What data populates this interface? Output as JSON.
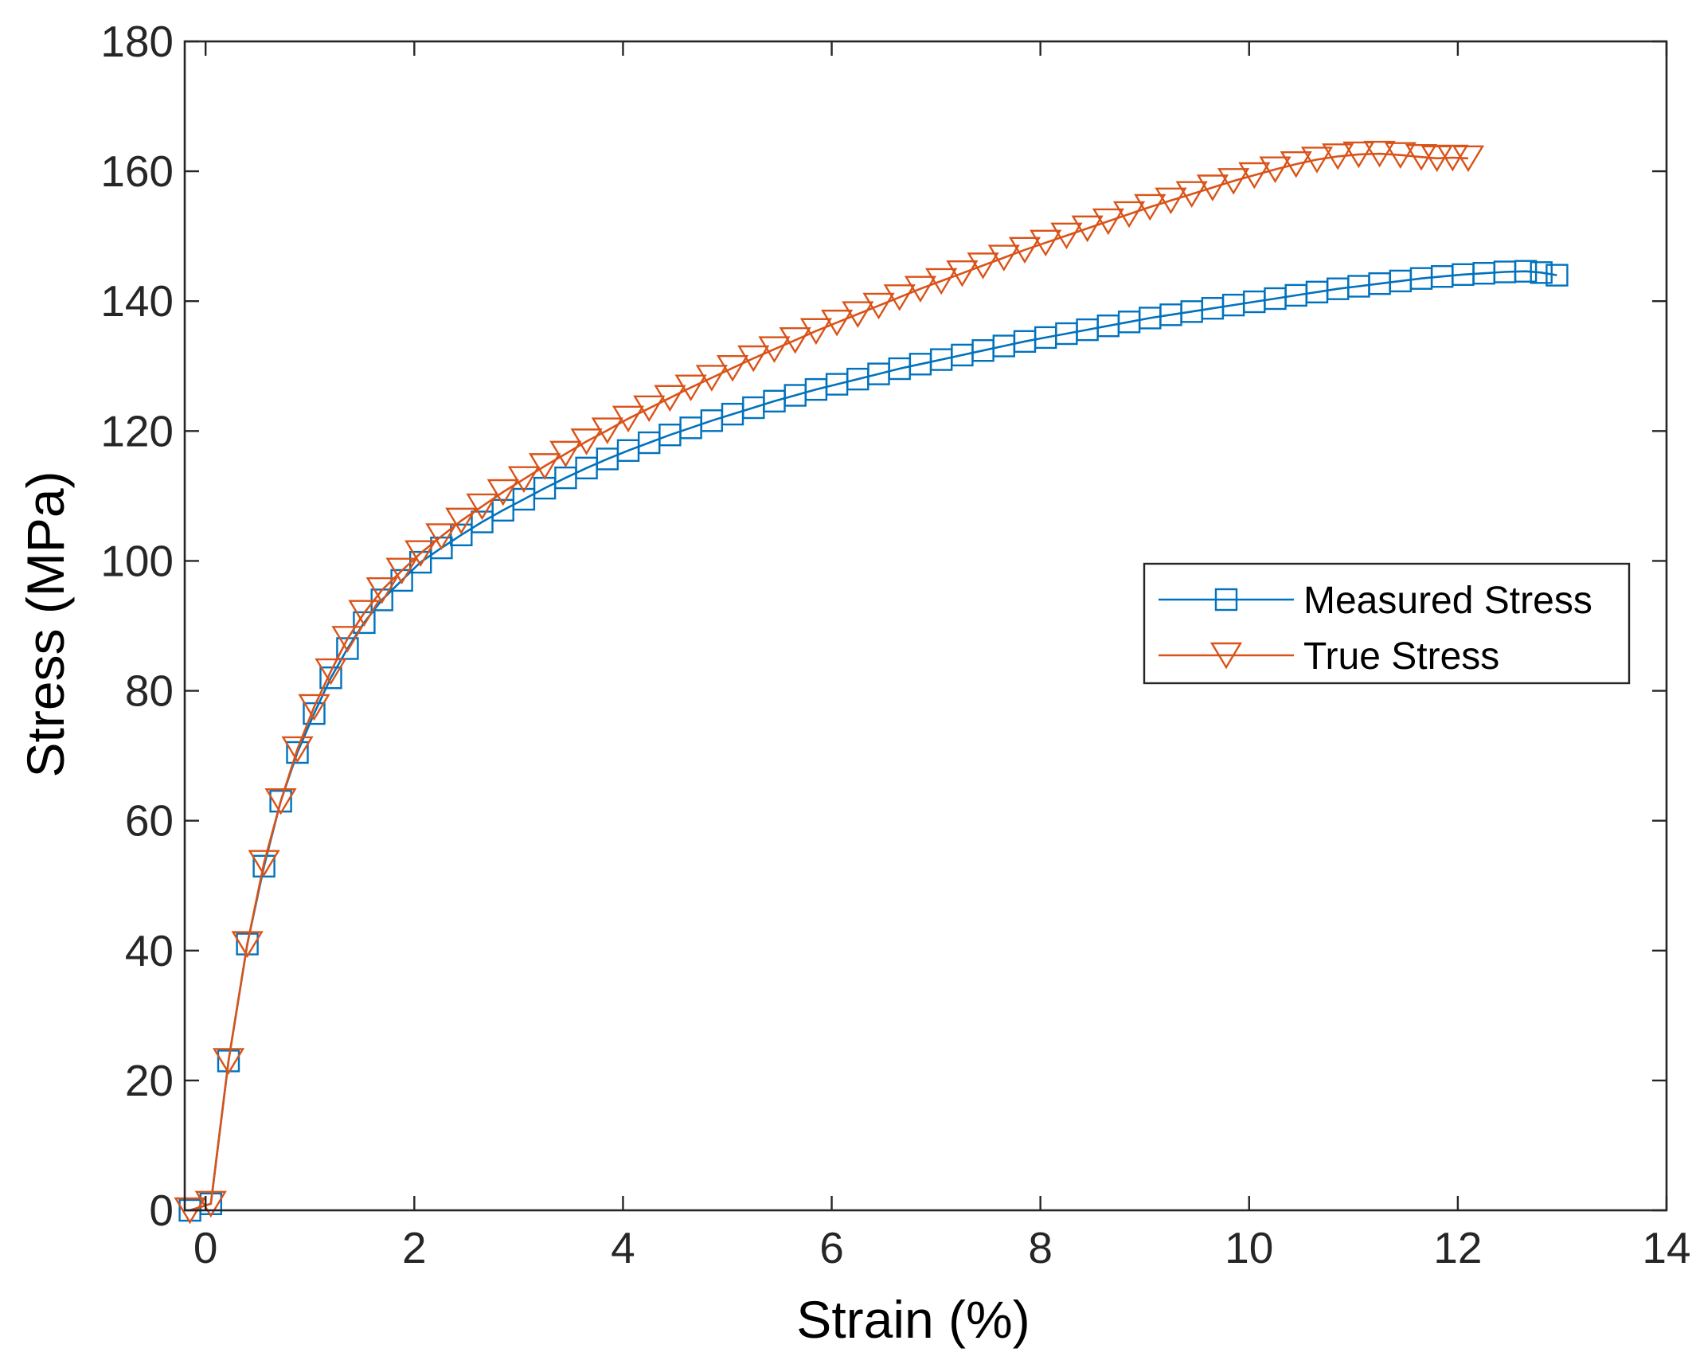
{
  "chart_data": {
    "type": "line",
    "title": "",
    "xlabel": "Strain (%)",
    "ylabel": "Stress (MPa)",
    "xlim": [
      -0.2,
      14
    ],
    "ylim": [
      0,
      180
    ],
    "xticks": [
      0,
      2,
      4,
      6,
      8,
      10,
      12,
      14
    ],
    "yticks": [
      0,
      20,
      40,
      60,
      80,
      100,
      120,
      140,
      160,
      180
    ],
    "grid": false,
    "legend_position": "center-right",
    "series": [
      {
        "name": "Measured Stress",
        "color": "#0072BD",
        "marker": "square",
        "x": [
          -0.15,
          0.05,
          0.22,
          0.4,
          0.56,
          0.72,
          0.88,
          1.04,
          1.2,
          1.36,
          1.52,
          1.69,
          1.88,
          2.06,
          2.26,
          2.45,
          2.65,
          2.85,
          3.05,
          3.25,
          3.45,
          3.65,
          3.85,
          4.05,
          4.25,
          4.45,
          4.65,
          4.85,
          5.05,
          5.25,
          5.45,
          5.65,
          5.85,
          6.05,
          6.25,
          6.45,
          6.65,
          6.85,
          7.05,
          7.25,
          7.45,
          7.65,
          7.85,
          8.05,
          8.25,
          8.45,
          8.65,
          8.85,
          9.05,
          9.25,
          9.45,
          9.65,
          9.85,
          10.05,
          10.25,
          10.45,
          10.65,
          10.85,
          11.05,
          11.25,
          11.45,
          11.65,
          11.85,
          12.05,
          12.25,
          12.45,
          12.65,
          12.8,
          12.95
        ],
        "y": [
          0,
          1,
          23,
          41,
          53,
          63,
          70.5,
          76.5,
          82,
          86.5,
          90.5,
          94,
          97,
          99.8,
          102,
          104,
          106,
          107.8,
          109.5,
          111.2,
          112.8,
          114.3,
          115.7,
          117,
          118.2,
          119.4,
          120.5,
          121.6,
          122.6,
          123.6,
          124.6,
          125.5,
          126.4,
          127.2,
          128,
          128.8,
          129.6,
          130.3,
          131,
          131.7,
          132.4,
          133.1,
          133.8,
          134.4,
          135,
          135.6,
          136.2,
          136.8,
          137.4,
          137.9,
          138.4,
          138.9,
          139.4,
          139.9,
          140.4,
          140.9,
          141.4,
          141.9,
          142.3,
          142.7,
          143.1,
          143.5,
          143.8,
          144.1,
          144.3,
          144.5,
          144.6,
          144.4,
          144
        ]
      },
      {
        "name": "True Stress",
        "color": "#D95319",
        "marker": "triangle-down",
        "x": [
          -0.15,
          0.05,
          0.22,
          0.4,
          0.56,
          0.72,
          0.88,
          1.04,
          1.2,
          1.36,
          1.52,
          1.69,
          1.88,
          2.06,
          2.26,
          2.45,
          2.65,
          2.85,
          3.05,
          3.25,
          3.45,
          3.65,
          3.85,
          4.05,
          4.25,
          4.45,
          4.65,
          4.85,
          5.05,
          5.25,
          5.45,
          5.65,
          5.85,
          6.05,
          6.25,
          6.45,
          6.65,
          6.85,
          7.05,
          7.25,
          7.45,
          7.65,
          7.85,
          8.05,
          8.25,
          8.45,
          8.65,
          8.85,
          9.05,
          9.25,
          9.45,
          9.65,
          9.85,
          10.05,
          10.25,
          10.45,
          10.65,
          10.85,
          11.05,
          11.25,
          11.45,
          11.65,
          11.8,
          11.95,
          12.1
        ],
        "y": [
          0,
          1,
          23,
          41,
          53.5,
          63,
          71,
          77.5,
          83,
          88,
          92,
          95.5,
          98.5,
          101.2,
          103.8,
          106.2,
          108.4,
          110.6,
          112.6,
          114.6,
          116.5,
          118.4,
          120.1,
          121.9,
          123.5,
          125.1,
          126.7,
          128.2,
          129.7,
          131.2,
          132.6,
          134,
          135.4,
          136.7,
          138,
          139.3,
          140.6,
          141.9,
          143.1,
          144.3,
          145.5,
          146.7,
          147.9,
          149,
          150.1,
          151.2,
          152.3,
          153.4,
          154.5,
          155.5,
          156.5,
          157.5,
          158.5,
          159.4,
          160.3,
          161.1,
          161.8,
          162.3,
          162.6,
          162.7,
          162.5,
          162.2,
          162.0,
          162.1,
          162.0
        ]
      }
    ]
  }
}
